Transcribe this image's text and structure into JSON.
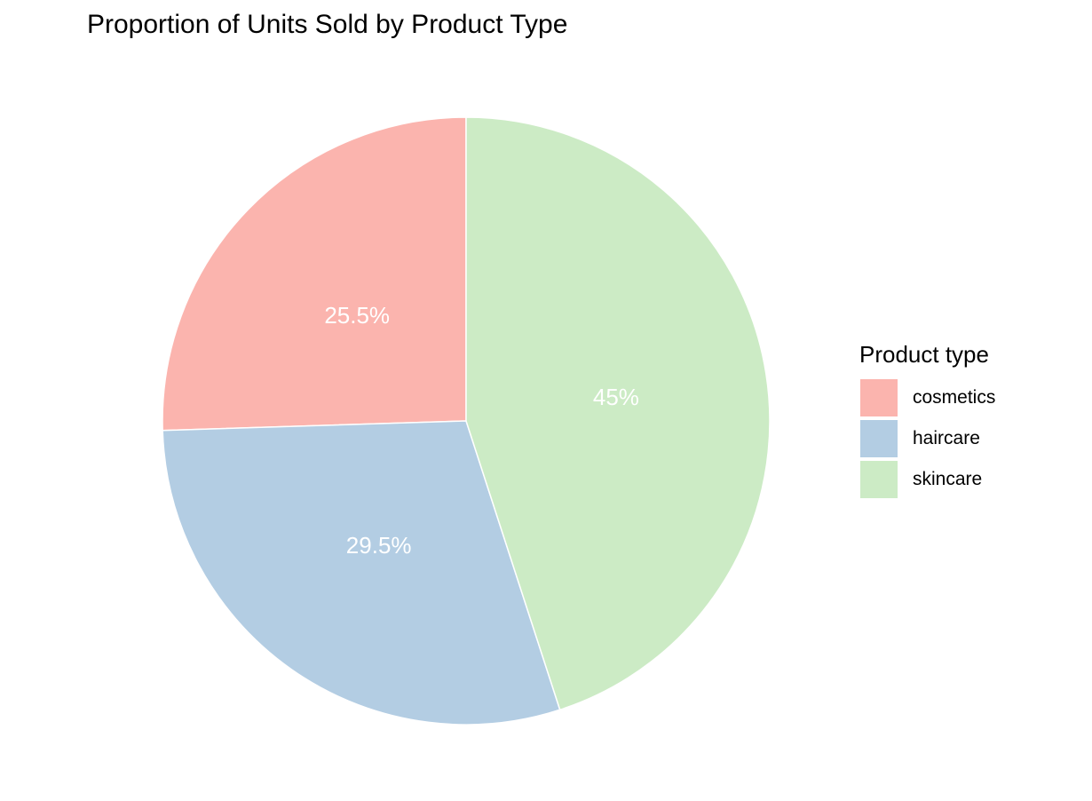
{
  "chart_data": {
    "type": "pie",
    "title": "Proportion of Units Sold by Product Type",
    "legend_title": "Product type",
    "legend_position": "right",
    "slices": [
      {
        "category": "cosmetics",
        "percent": 25.5,
        "label": "25.5%",
        "color": "#FBB4AE"
      },
      {
        "category": "haircare",
        "percent": 29.5,
        "label": "29.5%",
        "color": "#B3CDE3"
      },
      {
        "category": "skincare",
        "percent": 45,
        "label": "45%",
        "color": "#CCEBC5"
      }
    ]
  }
}
